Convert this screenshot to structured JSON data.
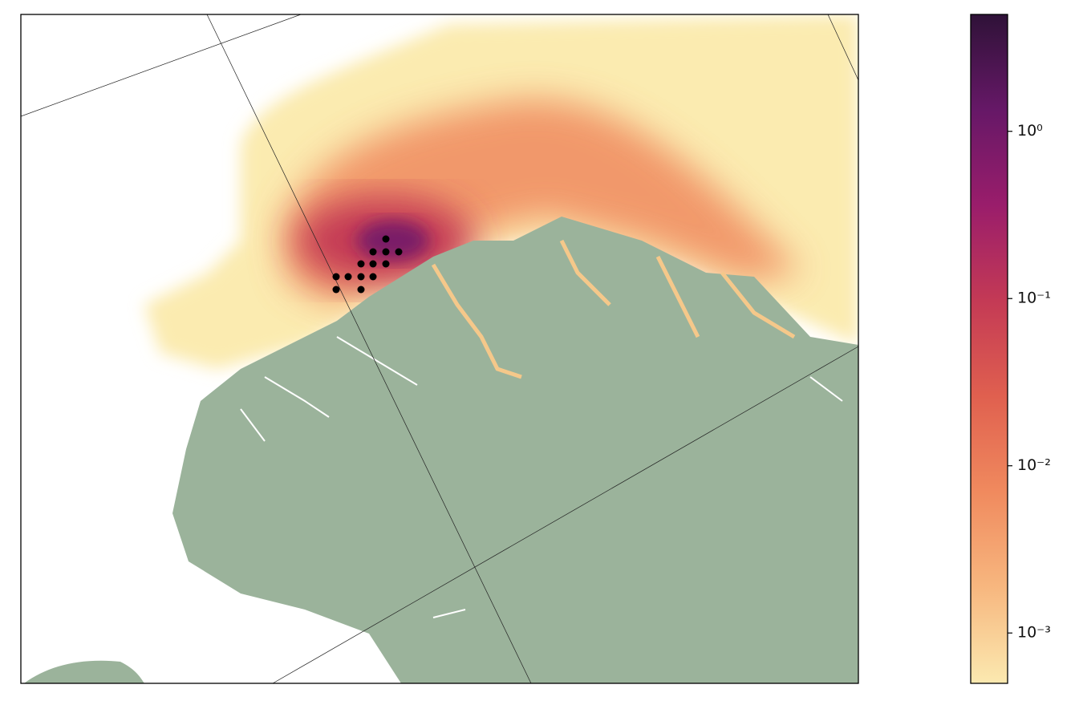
{
  "colorbar": {
    "scale": "log",
    "range": [
      0.0005,
      5
    ],
    "ticks": [
      {
        "value": 1,
        "label": "10⁰"
      },
      {
        "value": 0.1,
        "label": "10⁻¹"
      },
      {
        "value": 0.01,
        "label": "10⁻²"
      },
      {
        "value": 0.001,
        "label": "10⁻³"
      }
    ],
    "colors": [
      "#fbe9b0",
      "#f7b77f",
      "#f08a5e",
      "#e0604f",
      "#c43a55",
      "#9a1d6b",
      "#661867",
      "#2f1238"
    ]
  }
}
